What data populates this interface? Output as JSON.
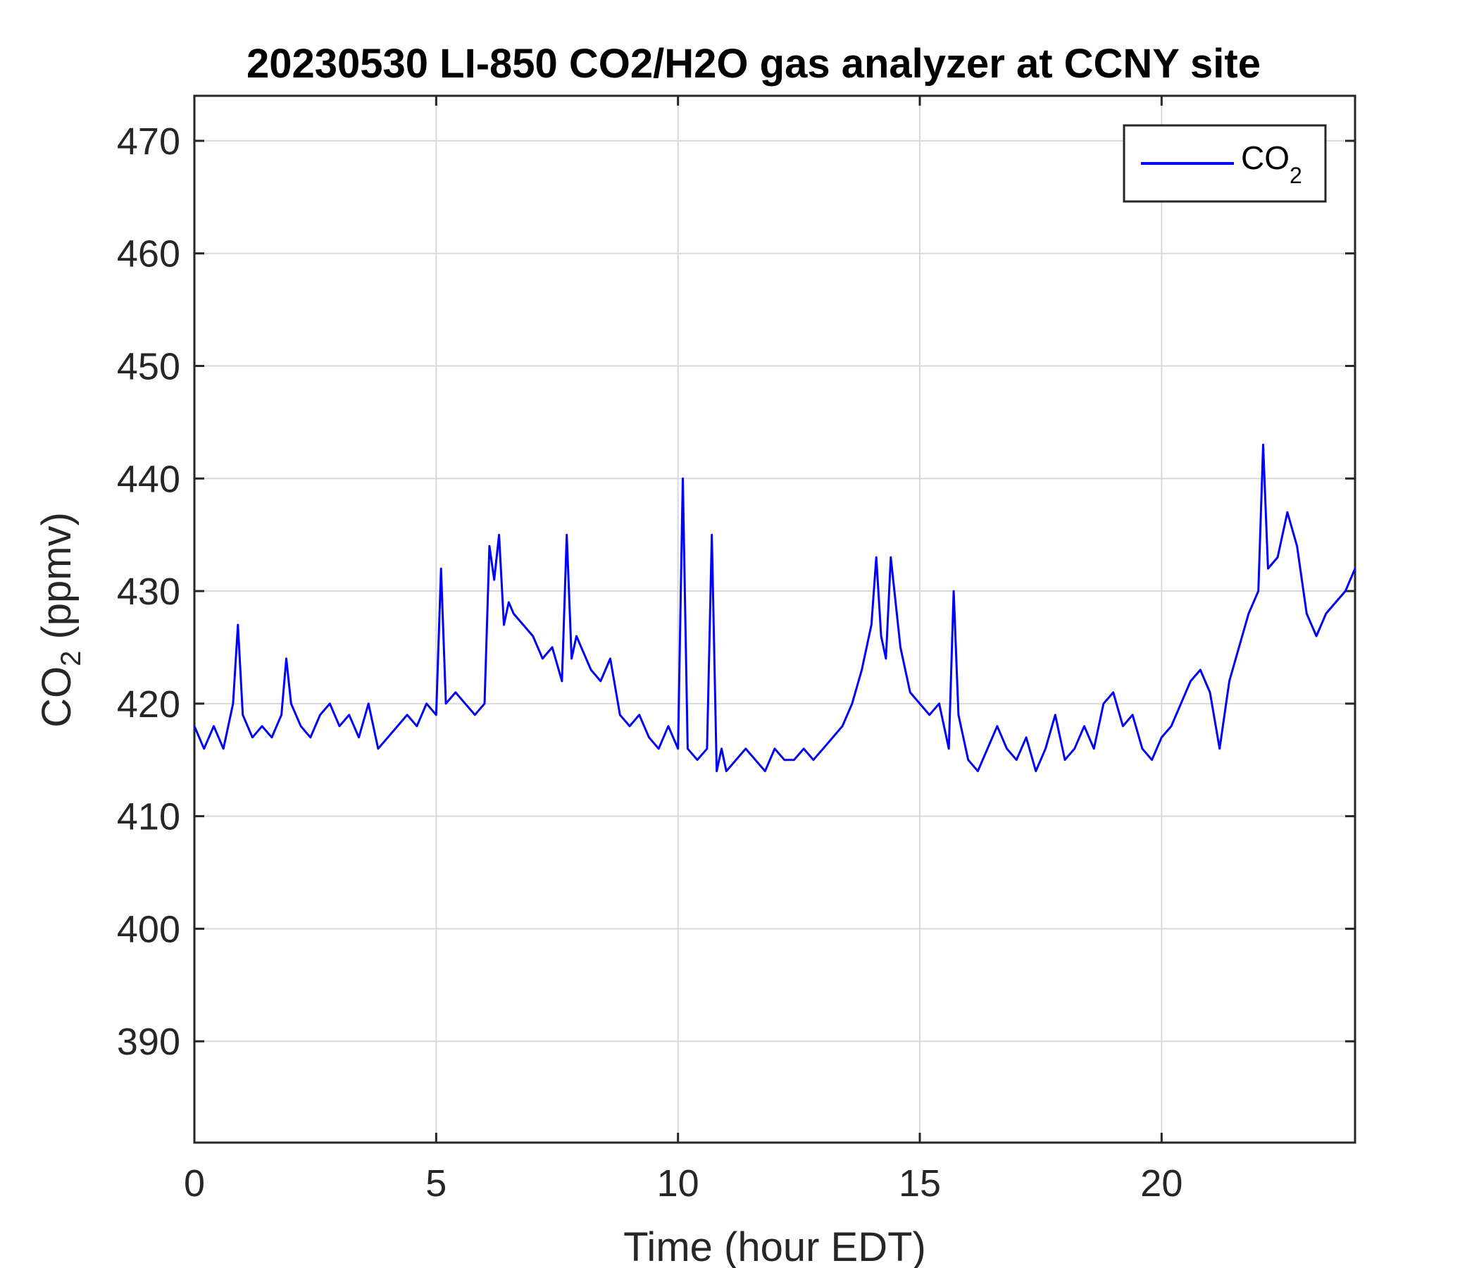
{
  "chart_data": {
    "type": "line",
    "title": "20230530 LI-850 CO2/H2O gas analyzer at CCNY site",
    "xlabel": "Time (hour EDT)",
    "ylabel": {
      "base": "CO",
      "sub": "2",
      "rest": " (ppmv)"
    },
    "xlim": [
      0,
      24
    ],
    "ylim": [
      381,
      474
    ],
    "xticks": [
      0,
      5,
      10,
      15,
      20
    ],
    "xtick_labels": [
      "0",
      "5",
      "10",
      "15",
      "20"
    ],
    "yticks": [
      390,
      400,
      410,
      420,
      430,
      440,
      450,
      460,
      470
    ],
    "ytick_labels": [
      "390",
      "400",
      "410",
      "420",
      "430",
      "440",
      "450",
      "460",
      "470"
    ],
    "grid": true,
    "legend_position": "top-right",
    "series": [
      {
        "name": {
          "base": "CO",
          "sub": "2"
        },
        "color": "#0000ff",
        "x": [
          0,
          0.2,
          0.4,
          0.6,
          0.8,
          0.9,
          1.0,
          1.2,
          1.4,
          1.6,
          1.8,
          1.9,
          2.0,
          2.2,
          2.4,
          2.6,
          2.8,
          3.0,
          3.2,
          3.4,
          3.6,
          3.8,
          4.0,
          4.2,
          4.4,
          4.6,
          4.8,
          5.0,
          5.1,
          5.2,
          5.4,
          5.6,
          5.8,
          6.0,
          6.1,
          6.2,
          6.3,
          6.4,
          6.5,
          6.6,
          6.8,
          7.0,
          7.2,
          7.4,
          7.6,
          7.7,
          7.8,
          7.9,
          8.0,
          8.2,
          8.4,
          8.6,
          8.8,
          9.0,
          9.2,
          9.4,
          9.6,
          9.8,
          10.0,
          10.1,
          10.2,
          10.4,
          10.6,
          10.7,
          10.8,
          10.9,
          11.0,
          11.2,
          11.4,
          11.6,
          11.8,
          12.0,
          12.2,
          12.4,
          12.6,
          12.8,
          13.0,
          13.2,
          13.4,
          13.6,
          13.8,
          14.0,
          14.1,
          14.2,
          14.3,
          14.4,
          14.6,
          14.8,
          15.0,
          15.2,
          15.4,
          15.6,
          15.7,
          15.8,
          16.0,
          16.2,
          16.4,
          16.6,
          16.8,
          17.0,
          17.2,
          17.4,
          17.6,
          17.8,
          18.0,
          18.2,
          18.4,
          18.6,
          18.8,
          19.0,
          19.2,
          19.4,
          19.6,
          19.8,
          20.0,
          20.2,
          20.4,
          20.6,
          20.8,
          21.0,
          21.2,
          21.4,
          21.6,
          21.8,
          22.0,
          22.1,
          22.2,
          22.4,
          22.6,
          22.8,
          23.0,
          23.2,
          23.4,
          23.6,
          23.8,
          24.0
        ],
        "y": [
          418,
          416,
          418,
          416,
          420,
          427,
          419,
          417,
          418,
          417,
          419,
          424,
          420,
          418,
          417,
          419,
          420,
          418,
          419,
          417,
          420,
          416,
          417,
          418,
          419,
          418,
          420,
          419,
          432,
          420,
          421,
          420,
          419,
          420,
          434,
          431,
          435,
          427,
          429,
          428,
          427,
          426,
          424,
          425,
          422,
          435,
          424,
          426,
          425,
          423,
          422,
          424,
          419,
          418,
          419,
          417,
          416,
          418,
          416,
          440,
          416,
          415,
          416,
          435,
          414,
          416,
          414,
          415,
          416,
          415,
          414,
          416,
          415,
          415,
          416,
          415,
          416,
          417,
          418,
          420,
          423,
          427,
          433,
          426,
          424,
          433,
          425,
          421,
          420,
          419,
          420,
          416,
          430,
          419,
          415,
          414,
          416,
          418,
          416,
          415,
          417,
          414,
          416,
          419,
          415,
          416,
          418,
          416,
          420,
          421,
          418,
          419,
          416,
          415,
          417,
          418,
          420,
          422,
          423,
          421,
          416,
          422,
          425,
          428,
          430,
          443,
          432,
          433,
          437,
          434,
          428,
          426,
          428,
          429,
          430,
          432
        ]
      }
    ]
  }
}
